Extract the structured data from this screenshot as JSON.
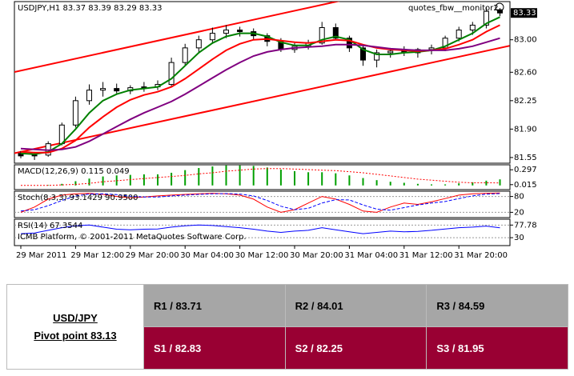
{
  "chart_data": [
    {
      "type": "candlestick",
      "title": "USDJPY,H1  83.37 83.39 83.29 83.33",
      "subtitle": "quotes_fbw__monitor2",
      "categories": [
        "29 Mar 2011",
        null,
        null,
        null,
        "29 Mar 12:00",
        null,
        null,
        null,
        "29 Mar 20:00",
        null,
        null,
        null,
        "30 Mar 04:00",
        null,
        null,
        null,
        "30 Mar 12:00",
        null,
        null,
        null,
        "30 Mar 20:00",
        null,
        null,
        null,
        "31 Mar 04:00",
        null,
        null,
        null,
        "31 Mar 12:00",
        null,
        null,
        null,
        "31 Mar 20:00",
        null,
        null,
        null
      ],
      "open": [
        81.6,
        81.57,
        81.58,
        81.72,
        81.95,
        82.25,
        82.38,
        82.4,
        82.37,
        82.41,
        82.42,
        82.45,
        82.72,
        82.9,
        83.0,
        83.08,
        83.12,
        83.1,
        83.05,
        82.98,
        82.88,
        82.92,
        82.96,
        83.15,
        83.02,
        82.9,
        82.75,
        82.84,
        82.86,
        82.84,
        82.88,
        82.9,
        83.02,
        83.12,
        83.18,
        83.37
      ],
      "high": [
        81.63,
        81.62,
        81.75,
        81.98,
        82.3,
        82.45,
        82.48,
        82.46,
        82.44,
        82.48,
        82.5,
        82.78,
        82.95,
        83.05,
        83.15,
        83.18,
        83.16,
        83.14,
        83.08,
        83.02,
        82.96,
        83.0,
        83.22,
        83.2,
        83.05,
        82.94,
        82.88,
        82.9,
        82.92,
        82.9,
        82.94,
        83.05,
        83.16,
        83.22,
        83.4,
        83.39
      ],
      "low": [
        81.54,
        81.52,
        81.56,
        81.7,
        81.92,
        82.2,
        82.3,
        82.34,
        82.33,
        82.36,
        82.38,
        82.42,
        82.68,
        82.85,
        82.95,
        83.02,
        83.04,
        83.0,
        82.92,
        82.85,
        82.84,
        82.88,
        82.94,
        83.0,
        82.85,
        82.68,
        82.66,
        82.78,
        82.8,
        82.78,
        82.82,
        82.86,
        82.98,
        83.06,
        83.14,
        83.29
      ],
      "close": [
        81.57,
        81.58,
        81.72,
        81.95,
        82.25,
        82.38,
        82.4,
        82.37,
        82.41,
        82.42,
        82.45,
        82.72,
        82.9,
        83.0,
        83.08,
        83.12,
        83.1,
        83.05,
        82.98,
        82.88,
        82.92,
        82.96,
        83.15,
        83.02,
        82.9,
        82.75,
        82.84,
        82.86,
        82.84,
        82.88,
        82.9,
        83.02,
        83.12,
        83.18,
        83.35,
        83.33
      ],
      "up_color": "#ffffff",
      "down_color": "#000000",
      "series": [
        {
          "color": "#008000",
          "values": [
            81.6,
            81.59,
            81.62,
            81.72,
            81.9,
            82.1,
            82.25,
            82.33,
            82.38,
            82.4,
            82.42,
            82.52,
            82.68,
            82.84,
            82.96,
            83.04,
            83.08,
            83.08,
            83.04,
            82.97,
            82.93,
            82.93,
            83.0,
            83.04,
            83.0,
            82.88,
            82.82,
            82.82,
            82.84,
            82.85,
            82.87,
            82.92,
            83.0,
            83.08,
            83.2,
            83.28
          ]
        },
        {
          "color": "#ff0000",
          "values": [
            81.62,
            81.61,
            81.61,
            81.66,
            81.76,
            81.92,
            82.05,
            82.17,
            82.26,
            82.32,
            82.36,
            82.42,
            82.52,
            82.64,
            82.76,
            82.87,
            82.95,
            83.0,
            83.01,
            82.99,
            82.97,
            82.96,
            82.98,
            83.0,
            82.99,
            82.94,
            82.9,
            82.88,
            82.87,
            82.86,
            82.87,
            82.89,
            82.94,
            83.0,
            83.1,
            83.18
          ]
        },
        {
          "color": "#800080",
          "values": [
            81.66,
            81.65,
            81.64,
            81.65,
            81.68,
            81.75,
            81.84,
            81.93,
            82.02,
            82.1,
            82.17,
            82.24,
            82.33,
            82.43,
            82.53,
            82.63,
            82.72,
            82.8,
            82.85,
            82.88,
            82.9,
            82.91,
            82.92,
            82.94,
            82.94,
            82.93,
            82.91,
            82.89,
            82.88,
            82.87,
            82.87,
            82.87,
            82.89,
            82.92,
            82.97,
            83.02
          ]
        }
      ],
      "trendlines": [
        {
          "color": "#ff0000",
          "x": [
            0,
            35
          ],
          "values": [
            82.62,
            83.91
          ]
        },
        {
          "color": "#ff0000",
          "x": [
            0,
            35
          ],
          "values": [
            81.62,
            82.9
          ]
        }
      ],
      "ylim": [
        81.48,
        83.47
      ],
      "yticks": [
        {
          "value": 83,
          "label": "83.00"
        },
        {
          "value": 82.6,
          "label": "82.60"
        },
        82.25,
        {
          "value": 81.9,
          "label": "81.90"
        },
        81.55
      ]
    },
    {
      "type": "macd",
      "title": "MACD(12,26,9) 0.115 0.049",
      "values": [
        0.0,
        0.0,
        0.01,
        0.03,
        0.08,
        0.13,
        0.17,
        0.19,
        0.2,
        0.21,
        0.21,
        0.24,
        0.29,
        0.33,
        0.36,
        0.38,
        0.38,
        0.37,
        0.34,
        0.3,
        0.27,
        0.25,
        0.25,
        0.23,
        0.19,
        0.14,
        0.1,
        0.07,
        0.05,
        0.03,
        0.02,
        0.02,
        0.04,
        0.06,
        0.09,
        0.115
      ],
      "signal": [
        0.0,
        0.0,
        0.0,
        0.01,
        0.02,
        0.04,
        0.07,
        0.09,
        0.11,
        0.13,
        0.15,
        0.17,
        0.19,
        0.22,
        0.24,
        0.27,
        0.29,
        0.31,
        0.32,
        0.32,
        0.31,
        0.3,
        0.29,
        0.28,
        0.26,
        0.24,
        0.21,
        0.18,
        0.15,
        0.12,
        0.1,
        0.08,
        0.06,
        0.05,
        0.05,
        0.049
      ],
      "color": "#00a000",
      "signal_color": "#ff0000",
      "ylim": [
        -0.079,
        0.391
      ],
      "yticks": [
        0.297,
        0.015
      ]
    },
    {
      "type": "line",
      "title": "Stoch(8,3,3) 93.1429 90.9500",
      "series": [
        {
          "color": "#ff0000",
          "values": [
            20,
            40,
            70,
            85,
            90,
            92,
            88,
            80,
            75,
            78,
            82,
            85,
            88,
            90,
            92,
            90,
            85,
            70,
            40,
            20,
            30,
            55,
            80,
            70,
            50,
            25,
            20,
            40,
            55,
            50,
            60,
            72,
            85,
            90,
            92,
            93.1429
          ]
        },
        {
          "color": "#0000ff",
          "dashed": true,
          "values": [
            25,
            30,
            45,
            65,
            82,
            89,
            90,
            87,
            81,
            78,
            78,
            82,
            85,
            88,
            90,
            91,
            89,
            82,
            65,
            43,
            30,
            35,
            55,
            68,
            67,
            48,
            32,
            28,
            38,
            48,
            55,
            61,
            72,
            82,
            89,
            90.95
          ]
        }
      ],
      "ylim": [
        0,
        100
      ],
      "yticks": [
        80,
        20
      ],
      "grid": true
    },
    {
      "type": "line",
      "title": "RSI(14) 67.3544",
      "annotation": "ICMB Platform, © 2001-2011 MetaQuotes Software Corp.",
      "series": [
        {
          "color": "#0000ff",
          "values": [
            45,
            48,
            58,
            68,
            75,
            78,
            70,
            62,
            60,
            62,
            63,
            70,
            75,
            78,
            76,
            72,
            68,
            62,
            55,
            50,
            55,
            58,
            68,
            60,
            52,
            45,
            50,
            55,
            52,
            54,
            58,
            63,
            68,
            70,
            74,
            67.3544
          ]
        }
      ],
      "ylim": [
        0,
        100
      ],
      "yticks": [
        77.78,
        30
      ],
      "grid": true
    }
  ],
  "table": {
    "header": [
      "USD/JPY",
      "Pivot point 83.13"
    ],
    "rows": [
      [
        "R1 / 83.71",
        "R2 / 84.01",
        "R3 / 84.59"
      ],
      [
        "S1 / 82.83",
        "S2 / 82.25",
        "S3 / 81.95"
      ]
    ]
  }
}
